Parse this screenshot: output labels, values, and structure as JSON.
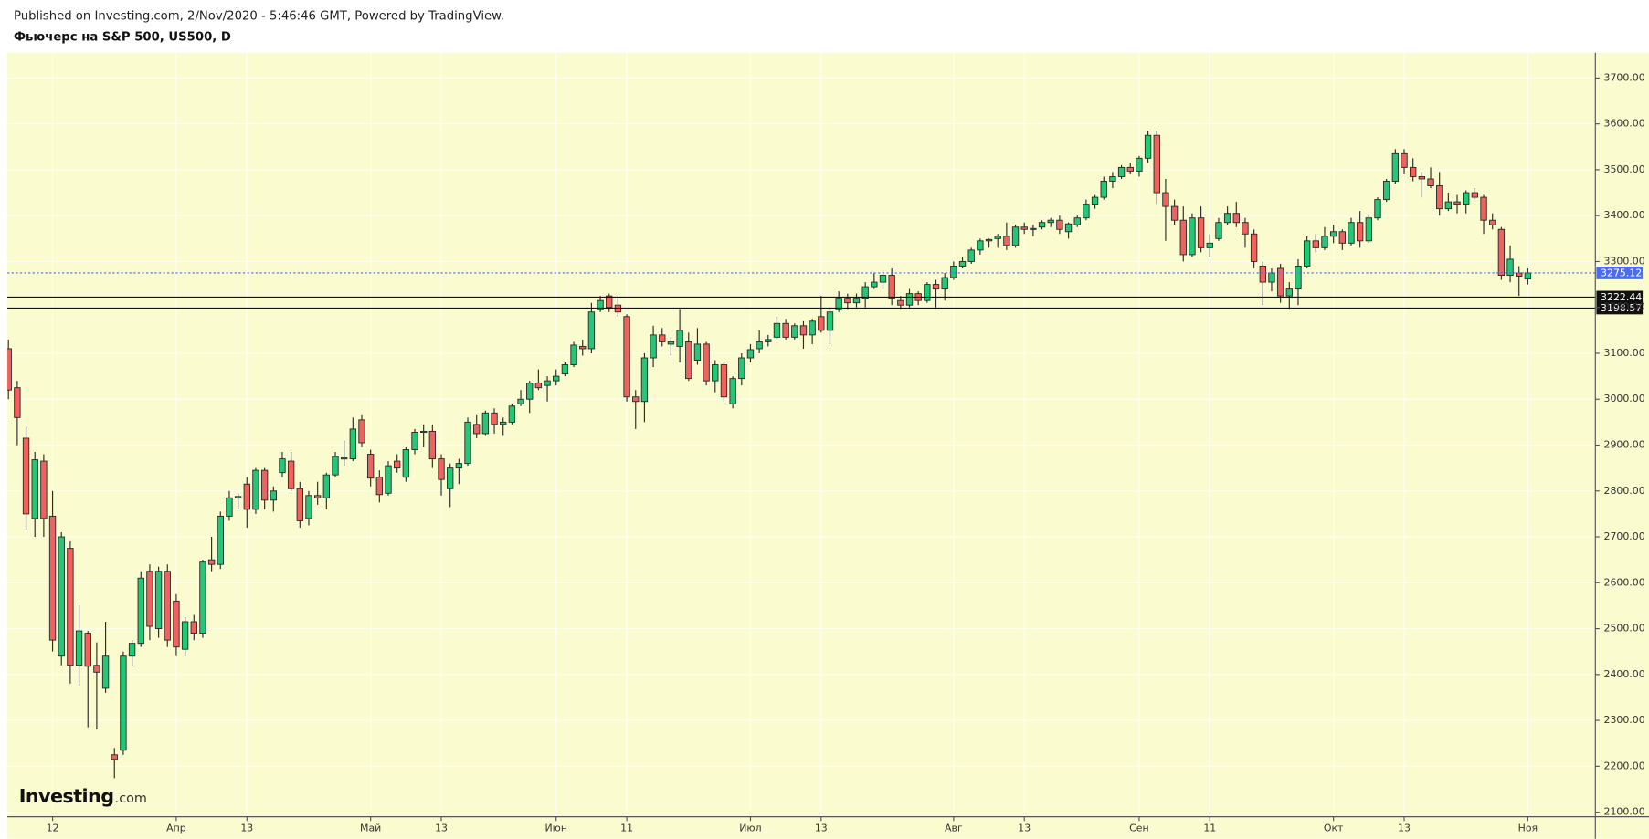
{
  "chart_data": {
    "type": "candlestick",
    "published": "Published on Investing.com, 2/Nov/2020 - 5:46:46 GMT, Powered by TradingView.",
    "title": "Фьючерс на S&P 500, US500, D",
    "watermark": {
      "name": "Investing",
      "suffix": ".com"
    },
    "up_color": "#22c875",
    "down_color": "#f0625e",
    "background": "#fafccf",
    "grid": true,
    "ylim": [
      2090,
      3755
    ],
    "yticks": [
      {
        "value": 2100,
        "label": "2100.00"
      },
      {
        "value": 2200,
        "label": "2200.00"
      },
      {
        "value": 2300,
        "label": "2300.00"
      },
      {
        "value": 2400,
        "label": "2400.00"
      },
      {
        "value": 2500,
        "label": "2500.00"
      },
      {
        "value": 2600,
        "label": "2600.00"
      },
      {
        "value": 2700,
        "label": "2700.00"
      },
      {
        "value": 2800,
        "label": "2800.00"
      },
      {
        "value": 2900,
        "label": "2900.00"
      },
      {
        "value": 3000,
        "label": "3000.00"
      },
      {
        "value": 3100,
        "label": "3100.00"
      },
      {
        "value": 3200,
        "label": "3200.00"
      },
      {
        "value": 3300,
        "label": "3300.00"
      },
      {
        "value": 3400,
        "label": "3400.00"
      },
      {
        "value": 3500,
        "label": "3500.00"
      },
      {
        "value": 3600,
        "label": "3600.00"
      },
      {
        "value": 3700,
        "label": "3700.00"
      }
    ],
    "levels": [
      {
        "value": 3275.12,
        "color": "#4a6cf2",
        "style": "dotted"
      },
      {
        "value": 3222.44,
        "color": "#111111",
        "style": "solid"
      },
      {
        "value": 3198.57,
        "color": "#111111",
        "style": "solid"
      }
    ],
    "categories": [
      null,
      null,
      null,
      null,
      null,
      "12",
      null,
      null,
      null,
      null,
      null,
      null,
      null,
      null,
      null,
      null,
      null,
      null,
      null,
      "Апр",
      null,
      null,
      null,
      null,
      null,
      null,
      null,
      "13",
      null,
      null,
      null,
      null,
      null,
      null,
      null,
      null,
      null,
      null,
      null,
      null,
      null,
      "Май",
      null,
      null,
      null,
      null,
      null,
      null,
      null,
      "13",
      null,
      null,
      null,
      null,
      null,
      null,
      null,
      null,
      null,
      null,
      null,
      null,
      "Июн",
      null,
      null,
      null,
      null,
      null,
      null,
      null,
      "11",
      null,
      null,
      null,
      null,
      null,
      null,
      null,
      null,
      null,
      null,
      null,
      null,
      null,
      "Июл",
      null,
      null,
      null,
      null,
      null,
      null,
      null,
      "13",
      null,
      null,
      null,
      null,
      null,
      null,
      null,
      null,
      null,
      null,
      null,
      null,
      null,
      null,
      "Авг",
      null,
      null,
      null,
      null,
      null,
      null,
      null,
      "13",
      null,
      null,
      null,
      null,
      null,
      null,
      null,
      null,
      null,
      null,
      null,
      null,
      "Сен",
      null,
      null,
      null,
      null,
      null,
      null,
      null,
      "11",
      null,
      null,
      null,
      null,
      null,
      null,
      null,
      null,
      null,
      null,
      null,
      null,
      null,
      "Окт",
      null,
      null,
      null,
      null,
      null,
      null,
      null,
      "13",
      null,
      null,
      null,
      null,
      null,
      null,
      null,
      null,
      null,
      null,
      null,
      null,
      null,
      "Ноя"
    ],
    "ohlc": [
      [
        3110,
        3130,
        3000,
        3020
      ],
      [
        3025,
        3040,
        2900,
        2960
      ],
      [
        2915,
        2940,
        2715,
        2750
      ],
      [
        2740,
        2885,
        2700,
        2868
      ],
      [
        2865,
        2880,
        2700,
        2740
      ],
      [
        2745,
        2800,
        2450,
        2475
      ],
      [
        2440,
        2710,
        2420,
        2700
      ],
      [
        2675,
        2690,
        2380,
        2420
      ],
      [
        2420,
        2550,
        2375,
        2495
      ],
      [
        2490,
        2495,
        2285,
        2418
      ],
      [
        2420,
        2470,
        2280,
        2405
      ],
      [
        2370,
        2515,
        2360,
        2440
      ],
      [
        2225,
        2240,
        2174,
        2215
      ],
      [
        2235,
        2450,
        2225,
        2440
      ],
      [
        2440,
        2475,
        2420,
        2468
      ],
      [
        2468,
        2625,
        2460,
        2610
      ],
      [
        2625,
        2640,
        2475,
        2505
      ],
      [
        2500,
        2635,
        2480,
        2625
      ],
      [
        2625,
        2640,
        2460,
        2475
      ],
      [
        2560,
        2575,
        2440,
        2460
      ],
      [
        2455,
        2525,
        2440,
        2515
      ],
      [
        2515,
        2530,
        2475,
        2490
      ],
      [
        2490,
        2650,
        2480,
        2645
      ],
      [
        2650,
        2700,
        2625,
        2640
      ],
      [
        2640,
        2755,
        2630,
        2745
      ],
      [
        2745,
        2800,
        2735,
        2785
      ],
      [
        2785,
        2795,
        2760,
        2788
      ],
      [
        2815,
        2830,
        2720,
        2760
      ],
      [
        2760,
        2850,
        2750,
        2845
      ],
      [
        2845,
        2850,
        2760,
        2780
      ],
      [
        2780,
        2810,
        2755,
        2800
      ],
      [
        2840,
        2885,
        2830,
        2870
      ],
      [
        2865,
        2885,
        2800,
        2805
      ],
      [
        2805,
        2820,
        2720,
        2735
      ],
      [
        2740,
        2800,
        2725,
        2790
      ],
      [
        2790,
        2820,
        2770,
        2785
      ],
      [
        2785,
        2840,
        2760,
        2835
      ],
      [
        2835,
        2885,
        2830,
        2875
      ],
      [
        2870,
        2910,
        2855,
        2872
      ],
      [
        2870,
        2960,
        2865,
        2935
      ],
      [
        2955,
        2965,
        2895,
        2905
      ],
      [
        2880,
        2890,
        2810,
        2828
      ],
      [
        2830,
        2845,
        2775,
        2792
      ],
      [
        2795,
        2865,
        2790,
        2855
      ],
      [
        2865,
        2880,
        2840,
        2850
      ],
      [
        2830,
        2895,
        2820,
        2890
      ],
      [
        2890,
        2935,
        2880,
        2928
      ],
      [
        2928,
        2945,
        2895,
        2930
      ],
      [
        2930,
        2945,
        2850,
        2870
      ],
      [
        2870,
        2880,
        2790,
        2825
      ],
      [
        2805,
        2860,
        2765,
        2850
      ],
      [
        2850,
        2870,
        2815,
        2860
      ],
      [
        2860,
        2960,
        2855,
        2950
      ],
      [
        2945,
        2965,
        2915,
        2925
      ],
      [
        2925,
        2975,
        2920,
        2970
      ],
      [
        2970,
        2980,
        2925,
        2945
      ],
      [
        2945,
        2960,
        2920,
        2950
      ],
      [
        2950,
        2990,
        2945,
        2985
      ],
      [
        2990,
        3020,
        2985,
        3000
      ],
      [
        3000,
        3040,
        2970,
        3035
      ],
      [
        3035,
        3065,
        3020,
        3025
      ],
      [
        3030,
        3050,
        2995,
        3040
      ],
      [
        3040,
        3065,
        3030,
        3050
      ],
      [
        3055,
        3080,
        3050,
        3075
      ],
      [
        3075,
        3125,
        3070,
        3118
      ],
      [
        3115,
        3130,
        3095,
        3110
      ],
      [
        3110,
        3210,
        3100,
        3190
      ],
      [
        3195,
        3225,
        3190,
        3215
      ],
      [
        3225,
        3230,
        3190,
        3200
      ],
      [
        3205,
        3225,
        3180,
        3190
      ],
      [
        3180,
        3185,
        2995,
        3005
      ],
      [
        3005,
        3020,
        2935,
        2995
      ],
      [
        2995,
        3100,
        2950,
        3090
      ],
      [
        3090,
        3160,
        3070,
        3140
      ],
      [
        3140,
        3155,
        3115,
        3125
      ],
      [
        3120,
        3135,
        3095,
        3125
      ],
      [
        3115,
        3195,
        3080,
        3150
      ],
      [
        3125,
        3145,
        3040,
        3045
      ],
      [
        3085,
        3155,
        3075,
        3120
      ],
      [
        3120,
        3125,
        3030,
        3040
      ],
      [
        3040,
        3085,
        3015,
        3075
      ],
      [
        3075,
        3080,
        2995,
        3005
      ],
      [
        2990,
        3050,
        2980,
        3045
      ],
      [
        3045,
        3100,
        3030,
        3090
      ],
      [
        3090,
        3120,
        3080,
        3108
      ],
      [
        3110,
        3150,
        3100,
        3125
      ],
      [
        3125,
        3140,
        3115,
        3130
      ],
      [
        3135,
        3180,
        3130,
        3165
      ],
      [
        3165,
        3175,
        3130,
        3135
      ],
      [
        3135,
        3165,
        3130,
        3160
      ],
      [
        3160,
        3170,
        3110,
        3140
      ],
      [
        3140,
        3175,
        3120,
        3170
      ],
      [
        3180,
        3225,
        3145,
        3150
      ],
      [
        3150,
        3200,
        3120,
        3190
      ],
      [
        3195,
        3235,
        3190,
        3220
      ],
      [
        3220,
        3230,
        3195,
        3210
      ],
      [
        3210,
        3230,
        3200,
        3220
      ],
      [
        3220,
        3255,
        3200,
        3245
      ],
      [
        3245,
        3275,
        3240,
        3255
      ],
      [
        3255,
        3280,
        3240,
        3270
      ],
      [
        3270,
        3285,
        3205,
        3220
      ],
      [
        3215,
        3225,
        3195,
        3205
      ],
      [
        3205,
        3240,
        3200,
        3230
      ],
      [
        3230,
        3235,
        3205,
        3215
      ],
      [
        3215,
        3255,
        3210,
        3250
      ],
      [
        3250,
        3260,
        3200,
        3240
      ],
      [
        3240,
        3275,
        3215,
        3265
      ],
      [
        3265,
        3300,
        3260,
        3290
      ],
      [
        3290,
        3310,
        3285,
        3300
      ],
      [
        3300,
        3330,
        3295,
        3325
      ],
      [
        3325,
        3350,
        3315,
        3345
      ],
      [
        3345,
        3350,
        3330,
        3348
      ],
      [
        3350,
        3360,
        3330,
        3355
      ],
      [
        3355,
        3385,
        3325,
        3335
      ],
      [
        3335,
        3380,
        3330,
        3375
      ],
      [
        3375,
        3385,
        3360,
        3370
      ],
      [
        3370,
        3380,
        3355,
        3372
      ],
      [
        3375,
        3390,
        3370,
        3385
      ],
      [
        3385,
        3395,
        3375,
        3390
      ],
      [
        3390,
        3400,
        3360,
        3370
      ],
      [
        3365,
        3385,
        3350,
        3382
      ],
      [
        3380,
        3400,
        3375,
        3395
      ],
      [
        3395,
        3435,
        3390,
        3425
      ],
      [
        3425,
        3445,
        3415,
        3440
      ],
      [
        3440,
        3485,
        3435,
        3475
      ],
      [
        3475,
        3495,
        3460,
        3485
      ],
      [
        3485,
        3510,
        3480,
        3505
      ],
      [
        3505,
        3515,
        3490,
        3497
      ],
      [
        3497,
        3530,
        3485,
        3525
      ],
      [
        3525,
        3585,
        3515,
        3575
      ],
      [
        3575,
        3585,
        3425,
        3450
      ],
      [
        3450,
        3480,
        3345,
        3420
      ],
      [
        3420,
        3435,
        3380,
        3390
      ],
      [
        3390,
        3420,
        3300,
        3315
      ],
      [
        3315,
        3405,
        3310,
        3395
      ],
      [
        3395,
        3420,
        3320,
        3330
      ],
      [
        3330,
        3360,
        3310,
        3340
      ],
      [
        3350,
        3395,
        3345,
        3385
      ],
      [
        3385,
        3420,
        3380,
        3405
      ],
      [
        3405,
        3430,
        3375,
        3385
      ],
      [
        3385,
        3395,
        3330,
        3360
      ],
      [
        3360,
        3370,
        3285,
        3300
      ],
      [
        3290,
        3300,
        3205,
        3255
      ],
      [
        3255,
        3285,
        3235,
        3275
      ],
      [
        3285,
        3295,
        3210,
        3225
      ],
      [
        3225,
        3255,
        3195,
        3240
      ],
      [
        3240,
        3305,
        3205,
        3290
      ],
      [
        3290,
        3355,
        3285,
        3345
      ],
      [
        3345,
        3360,
        3320,
        3330
      ],
      [
        3330,
        3375,
        3325,
        3355
      ],
      [
        3355,
        3380,
        3340,
        3365
      ],
      [
        3365,
        3370,
        3325,
        3340
      ],
      [
        3340,
        3395,
        3335,
        3385
      ],
      [
        3385,
        3410,
        3330,
        3345
      ],
      [
        3345,
        3400,
        3340,
        3395
      ],
      [
        3395,
        3440,
        3390,
        3435
      ],
      [
        3435,
        3480,
        3430,
        3475
      ],
      [
        3475,
        3545,
        3470,
        3535
      ],
      [
        3535,
        3545,
        3490,
        3505
      ],
      [
        3505,
        3525,
        3475,
        3485
      ],
      [
        3485,
        3495,
        3440,
        3480
      ],
      [
        3480,
        3505,
        3460,
        3465
      ],
      [
        3465,
        3495,
        3400,
        3415
      ],
      [
        3415,
        3450,
        3410,
        3430
      ],
      [
        3430,
        3445,
        3405,
        3425
      ],
      [
        3425,
        3455,
        3405,
        3450
      ],
      [
        3450,
        3460,
        3435,
        3440
      ],
      [
        3440,
        3445,
        3360,
        3390
      ],
      [
        3390,
        3405,
        3370,
        3380
      ],
      [
        3370,
        3375,
        3260,
        3270
      ],
      [
        3270,
        3335,
        3255,
        3305
      ],
      [
        3275,
        3290,
        3225,
        3268
      ],
      [
        3262,
        3285,
        3250,
        3275.12
      ]
    ]
  }
}
